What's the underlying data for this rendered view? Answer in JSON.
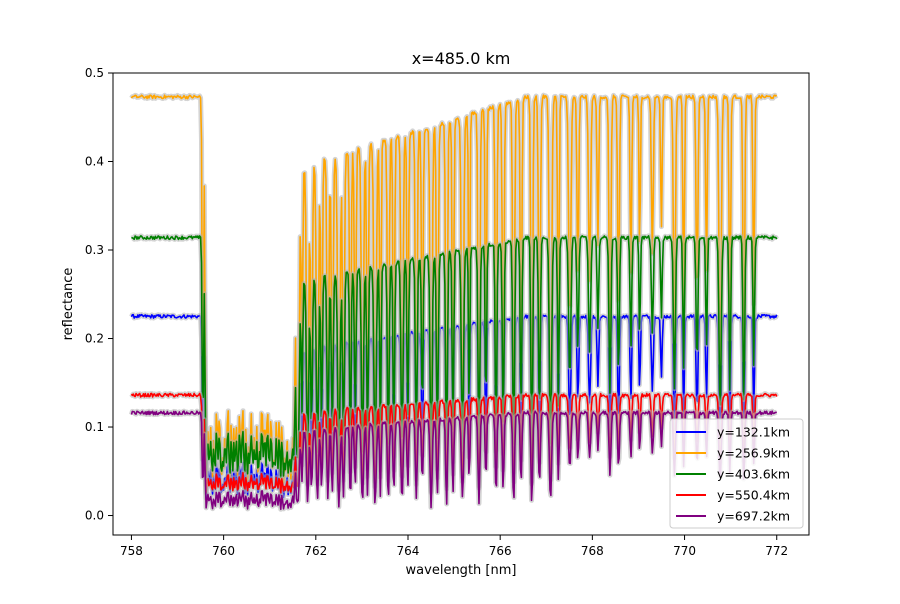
{
  "chart_data": {
    "type": "line",
    "title": "x=485.0 km",
    "xlabel": "wavelength [nm]",
    "ylabel": "reflectance",
    "xlim": [
      757.6,
      772.7
    ],
    "ylim": [
      -0.022,
      0.5
    ],
    "xticks": [
      758,
      760,
      762,
      764,
      766,
      768,
      770,
      772
    ],
    "yticks": [
      0.0,
      0.1,
      0.2,
      0.3,
      0.4,
      0.5
    ],
    "xtick_labels": [
      "758",
      "760",
      "762",
      "764",
      "766",
      "768",
      "770",
      "772"
    ],
    "ytick_labels": [
      "0.0",
      "0.1",
      "0.2",
      "0.3",
      "0.4",
      "0.5"
    ],
    "grid": false,
    "legend_position": "lower-right",
    "uncertainty_band_color": "#b0b0b0",
    "series": [
      {
        "name": "y=132.1km",
        "color": "#0000ff",
        "continuum": 0.225,
        "floor": 0.018
      },
      {
        "name": "y=256.9km",
        "color": "#ffa500",
        "continuum": 0.473,
        "floor": 0.03
      },
      {
        "name": "y=403.6km",
        "color": "#008000",
        "continuum": 0.314,
        "floor": 0.04
      },
      {
        "name": "y=550.4km",
        "color": "#ff0000",
        "continuum": 0.136,
        "floor": 0.024
      },
      {
        "name": "y=697.2km",
        "color": "#800080",
        "continuum": 0.116,
        "floor": 0.006
      }
    ]
  }
}
